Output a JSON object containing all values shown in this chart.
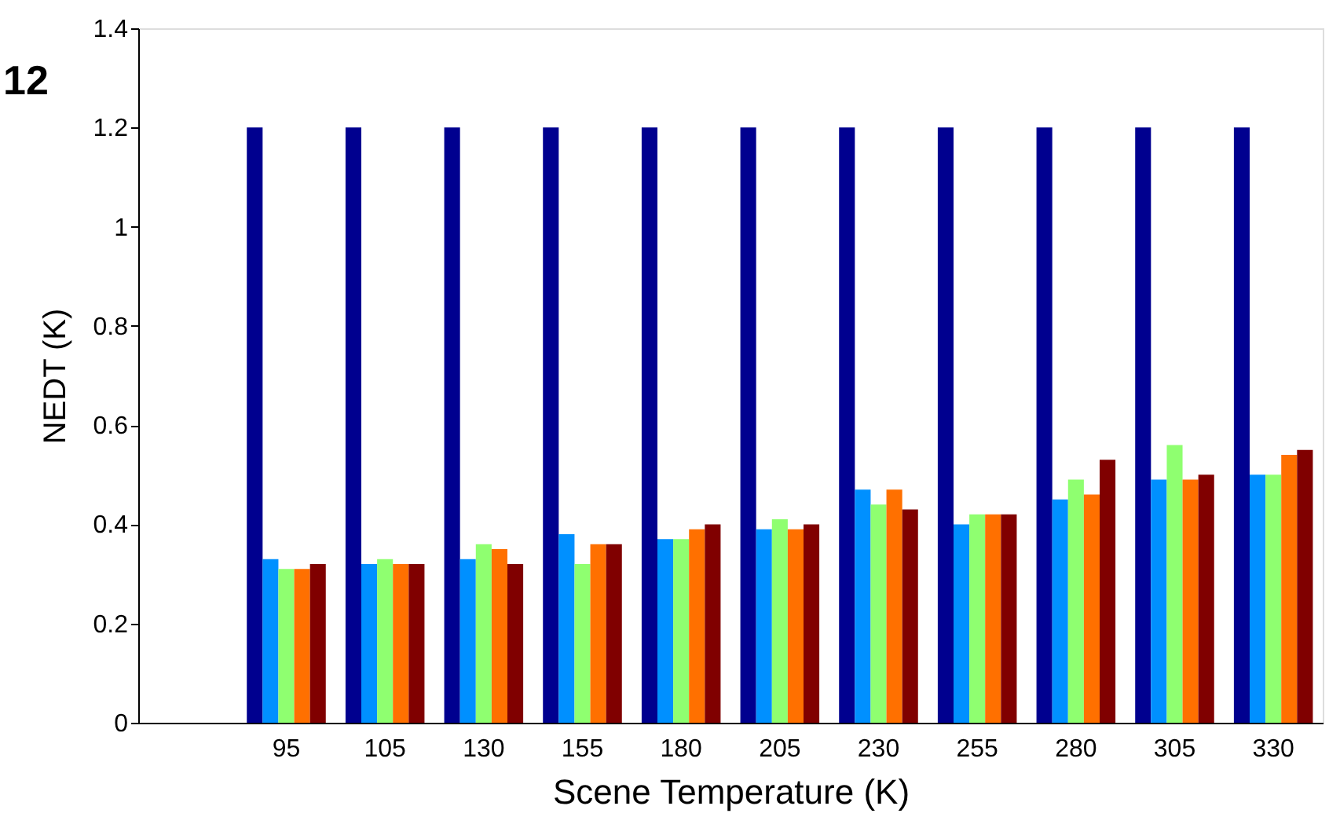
{
  "chart_data": {
    "type": "bar",
    "xlabel": "Scene Temperature (K)",
    "ylabel": "NEDT (K)",
    "annotations": [
      "12"
    ],
    "categories": [
      null,
      "95",
      "105",
      "130",
      "155",
      "180",
      "205",
      "230",
      "255",
      "280",
      "305",
      "330"
    ],
    "series": [
      {
        "color": "#00008f",
        "values": [
          null,
          1.2,
          1.2,
          1.2,
          1.2,
          1.2,
          1.2,
          1.2,
          1.2,
          1.2,
          1.2,
          1.2
        ]
      },
      {
        "color": "#0090ff",
        "values": [
          null,
          0.33,
          0.32,
          0.33,
          0.38,
          0.37,
          0.39,
          0.47,
          0.4,
          0.45,
          0.49,
          0.5
        ]
      },
      {
        "color": "#8fff70",
        "values": [
          null,
          0.31,
          0.33,
          0.36,
          0.32,
          0.37,
          0.41,
          0.44,
          0.42,
          0.49,
          0.56,
          0.5
        ]
      },
      {
        "color": "#ff7000",
        "values": [
          null,
          0.31,
          0.32,
          0.35,
          0.36,
          0.39,
          0.39,
          0.47,
          0.42,
          0.46,
          0.49,
          0.54
        ]
      },
      {
        "color": "#800000",
        "values": [
          null,
          0.32,
          0.32,
          0.32,
          0.36,
          0.4,
          0.4,
          0.43,
          0.42,
          0.53,
          0.5,
          0.55
        ]
      }
    ],
    "ylim": [
      0,
      1.4
    ],
    "yticks": [
      0,
      0.2,
      0.4,
      0.6,
      0.8,
      1,
      1.2,
      1.4
    ],
    "grid": false
  }
}
